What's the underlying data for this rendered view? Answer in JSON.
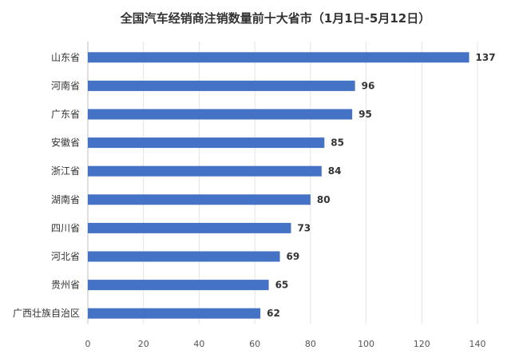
{
  "chart_data": {
    "type": "bar",
    "orientation": "horizontal",
    "title": "全国汽车经销商注销数量前十大省市（1月1日-5月12日）",
    "categories": [
      "山东省",
      "河南省",
      "广东省",
      "安徽省",
      "浙江省",
      "湖南省",
      "四川省",
      "河北省",
      "贵州省",
      "广西壮族自治区"
    ],
    "values": [
      137,
      96,
      95,
      85,
      84,
      80,
      73,
      69,
      65,
      62
    ],
    "xlim": [
      0,
      140
    ],
    "xticks": [
      0,
      20,
      40,
      60,
      80,
      100,
      120,
      140
    ],
    "grid": "vertical",
    "data_labels": true,
    "colors": {
      "bar": "#4472c4",
      "grid": "#e3e3e3",
      "axis": "#bfbfbf"
    }
  }
}
